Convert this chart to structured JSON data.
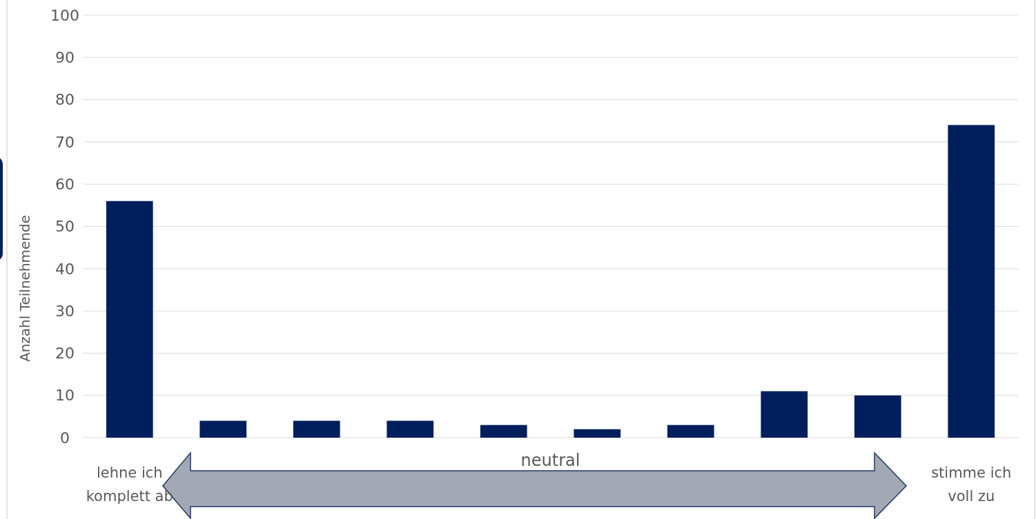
{
  "chart_data": {
    "type": "bar",
    "ylabel": "Anzahl Teilnehmende",
    "categories": [
      "lehne ich komplett ab",
      null,
      null,
      null,
      null,
      null,
      null,
      null,
      null,
      "stimme ich voll zu"
    ],
    "values": [
      56,
      4,
      4,
      4,
      3,
      2,
      3,
      11,
      10,
      74
    ],
    "color": "#001f5c",
    "ylim": [
      0,
      100
    ],
    "yticks": [
      0,
      10,
      20,
      30,
      40,
      50,
      60,
      70,
      80,
      90,
      100
    ],
    "grid": "y",
    "annotations": [
      "neutral"
    ]
  }
}
